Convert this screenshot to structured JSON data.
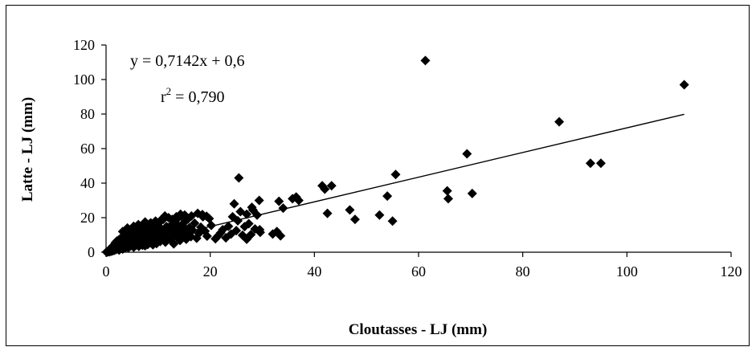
{
  "chart_data": {
    "type": "scatter",
    "title": "",
    "xlabel": "Cloutasses - LJ (mm)",
    "ylabel": "Latte - LJ (mm)",
    "xlim": [
      0,
      120
    ],
    "ylim": [
      0,
      120
    ],
    "x_ticks": [
      0,
      20,
      40,
      60,
      80,
      100,
      120
    ],
    "y_ticks": [
      0,
      20,
      40,
      60,
      80,
      100,
      120
    ],
    "grid": false,
    "legend": "none",
    "marker": "diamond",
    "marker_color": "#000000",
    "annotations": {
      "equation": "y = 0,7142x + 0,6",
      "r2_prefix": "r",
      "r2_exponent": "2",
      "r2_value": " = 0,790"
    },
    "trendline": {
      "slope": 0.7142,
      "intercept": 0.6,
      "x_range": [
        0,
        111
      ]
    },
    "series": [
      {
        "values": [
          [
            0.1,
            0.1
          ],
          [
            0.2,
            0.3
          ],
          [
            0.3,
            0.1
          ],
          [
            0.4,
            0.6
          ],
          [
            0.5,
            0.4
          ],
          [
            0.6,
            1.2
          ],
          [
            0.7,
            0.3
          ],
          [
            0.8,
            1.8
          ],
          [
            0.9,
            0.9
          ],
          [
            1.0,
            2.5
          ],
          [
            1.0,
            0.5
          ],
          [
            1.1,
            1.4
          ],
          [
            1.2,
            3.2
          ],
          [
            1.3,
            0.8
          ],
          [
            1.4,
            2.1
          ],
          [
            1.5,
            4.0
          ],
          [
            1.6,
            1.1
          ],
          [
            1.7,
            2.9
          ],
          [
            1.8,
            5.5
          ],
          [
            1.9,
            1.5
          ],
          [
            2.0,
            3.6
          ],
          [
            2.1,
            6.5
          ],
          [
            2.2,
            2.0
          ],
          [
            2.3,
            4.4
          ],
          [
            2.4,
            7.0
          ],
          [
            2.5,
            1.2
          ],
          [
            2.6,
            3.0
          ],
          [
            2.7,
            5.2
          ],
          [
            2.8,
            8.0
          ],
          [
            2.9,
            2.2
          ],
          [
            3.0,
            4.1
          ],
          [
            3.1,
            6.8
          ],
          [
            3.2,
            1.8
          ],
          [
            3.3,
            9.0
          ],
          [
            3.4,
            3.3
          ],
          [
            3.5,
            5.8
          ],
          [
            3.6,
            2.5
          ],
          [
            3.7,
            7.5
          ],
          [
            3.8,
            4.6
          ],
          [
            3.9,
            10.0
          ],
          [
            4.0,
            3.0
          ],
          [
            4.1,
            6.1
          ],
          [
            4.2,
            11.0
          ],
          [
            4.3,
            2.7
          ],
          [
            4.4,
            8.3
          ],
          [
            4.5,
            5.0
          ],
          [
            4.6,
            12.0
          ],
          [
            4.7,
            3.6
          ],
          [
            4.8,
            7.0
          ],
          [
            4.9,
            9.5
          ],
          [
            5.0,
            4.2
          ],
          [
            5.1,
            13.5
          ],
          [
            5.2,
            6.4
          ],
          [
            5.3,
            2.9
          ],
          [
            5.4,
            10.5
          ],
          [
            5.5,
            5.3
          ],
          [
            5.6,
            8.8
          ],
          [
            5.7,
            3.9
          ],
          [
            5.8,
            11.5
          ],
          [
            5.9,
            7.2
          ],
          [
            6.0,
            4.8
          ],
          [
            6.1,
            14.0
          ],
          [
            6.2,
            9.2
          ],
          [
            6.3,
            3.4
          ],
          [
            6.4,
            6.0
          ],
          [
            6.5,
            12.5
          ],
          [
            6.6,
            8.1
          ],
          [
            6.7,
            5.1
          ],
          [
            6.8,
            15.0
          ],
          [
            6.9,
            10.2
          ],
          [
            7.0,
            4.0
          ],
          [
            7.1,
            7.6
          ],
          [
            7.2,
            13.0
          ],
          [
            7.3,
            5.9
          ],
          [
            7.4,
            9.9
          ],
          [
            7.5,
            3.7
          ],
          [
            7.6,
            16.0
          ],
          [
            7.7,
            8.4
          ],
          [
            7.8,
            11.8
          ],
          [
            7.9,
            6.3
          ],
          [
            8.0,
            4.5
          ],
          [
            8.1,
            14.5
          ],
          [
            8.2,
            9.5
          ],
          [
            8.3,
            7.1
          ],
          [
            8.4,
            12.2
          ],
          [
            8.5,
            5.5
          ],
          [
            8.6,
            17.0
          ],
          [
            8.7,
            10.8
          ],
          [
            8.8,
            6.9
          ],
          [
            8.9,
            13.8
          ],
          [
            9.0,
            4.3
          ],
          [
            9.1,
            8.7
          ],
          [
            9.2,
            15.5
          ],
          [
            9.3,
            11.2
          ],
          [
            9.4,
            6.5
          ],
          [
            9.5,
            18.0
          ],
          [
            9.6,
            9.8
          ],
          [
            9.7,
            5.0
          ],
          [
            9.8,
            12.8
          ],
          [
            9.9,
            7.8
          ],
          [
            10.0,
            16.5
          ],
          [
            10.2,
            10.5
          ],
          [
            10.4,
            6.2
          ],
          [
            10.6,
            13.5
          ],
          [
            10.8,
            8.2
          ],
          [
            11.0,
            19.0
          ],
          [
            11.2,
            11.5
          ],
          [
            11.4,
            5.8
          ],
          [
            11.6,
            14.8
          ],
          [
            11.8,
            9.2
          ],
          [
            12.0,
            20.0
          ],
          [
            12.2,
            12.0
          ],
          [
            12.4,
            7.3
          ],
          [
            12.6,
            16.0
          ],
          [
            12.8,
            10.0
          ],
          [
            13.0,
            4.8
          ],
          [
            13.2,
            13.2
          ],
          [
            13.4,
            18.5
          ],
          [
            13.6,
            8.9
          ],
          [
            13.8,
            11.8
          ],
          [
            14.0,
            15.0
          ],
          [
            14.2,
            6.8
          ],
          [
            14.4,
            21.0
          ],
          [
            14.6,
            12.5
          ],
          [
            14.8,
            9.6
          ],
          [
            15.0,
            17.2
          ],
          [
            15.2,
            13.8
          ],
          [
            15.4,
            7.5
          ],
          [
            15.6,
            11.0
          ],
          [
            15.8,
            19.5
          ],
          [
            16.0,
            14.2
          ],
          [
            16.3,
            9.0
          ],
          [
            16.6,
            12.8
          ],
          [
            17.0,
            16.8
          ],
          [
            17.4,
            8.1
          ],
          [
            17.8,
            10.8
          ],
          [
            18.2,
            14.5
          ],
          [
            18.6,
            20.5
          ],
          [
            19.0,
            12.2
          ],
          [
            19.4,
            9.3
          ],
          [
            3.2,
            12.0
          ],
          [
            4.1,
            14.0
          ],
          [
            5.3,
            15.0
          ],
          [
            6.2,
            16.0
          ],
          [
            7.5,
            17.5
          ],
          [
            8.4,
            16.5
          ],
          [
            9.6,
            17.0
          ],
          [
            10.5,
            18.5
          ],
          [
            11.3,
            21.0
          ],
          [
            12.7,
            19.0
          ],
          [
            13.5,
            20.5
          ],
          [
            14.3,
            22.0
          ],
          [
            15.1,
            21.5
          ],
          [
            16.4,
            21.0
          ],
          [
            17.6,
            22.5
          ],
          [
            18.5,
            21.8
          ],
          [
            19.3,
            20.8
          ],
          [
            19.8,
            19.5
          ],
          [
            20.2,
            15.5
          ],
          [
            21.0,
            7.8
          ],
          [
            21.5,
            9.5
          ],
          [
            22.0,
            11.2
          ],
          [
            22.4,
            13.0
          ],
          [
            23.0,
            8.3
          ],
          [
            23.5,
            15.0
          ],
          [
            24.0,
            10.5
          ],
          [
            24.3,
            20.5
          ],
          [
            24.6,
            28.0
          ],
          [
            25.0,
            12.5
          ],
          [
            25.3,
            18.2
          ],
          [
            25.8,
            23.5
          ],
          [
            26.2,
            9.8
          ],
          [
            26.6,
            14.8
          ],
          [
            27.0,
            7.5
          ],
          [
            27.4,
            16.5
          ],
          [
            27.8,
            10.2
          ],
          [
            28.2,
            24.5
          ],
          [
            28.6,
            13.5
          ],
          [
            29.0,
            21.5
          ],
          [
            29.4,
            30.0
          ],
          [
            29.6,
            11.5
          ],
          [
            25.5,
            43.0
          ],
          [
            28.0,
            26.0
          ],
          [
            27.0,
            22.0
          ],
          [
            29.5,
            13.0
          ],
          [
            32.0,
            10.5
          ],
          [
            32.8,
            12.0
          ],
          [
            33.5,
            9.5
          ],
          [
            33.2,
            29.5
          ],
          [
            34.0,
            25.5
          ],
          [
            35.8,
            31.0
          ],
          [
            36.5,
            32.0
          ],
          [
            37.0,
            30.0
          ],
          [
            41.5,
            38.5
          ],
          [
            42.0,
            36.5
          ],
          [
            42.5,
            22.5
          ],
          [
            43.3,
            38.5
          ],
          [
            46.8,
            24.5
          ],
          [
            47.8,
            19.0
          ],
          [
            52.5,
            21.5
          ],
          [
            54.0,
            32.5
          ],
          [
            55.0,
            18.0
          ],
          [
            55.6,
            45.0
          ],
          [
            61.3,
            111.0
          ],
          [
            65.5,
            35.5
          ],
          [
            65.7,
            31.0
          ],
          [
            69.3,
            57.0
          ],
          [
            70.3,
            34.0
          ],
          [
            87.0,
            75.5
          ],
          [
            93.0,
            51.5
          ],
          [
            95.0,
            51.5
          ],
          [
            111.0,
            97.0
          ]
        ]
      }
    ]
  }
}
